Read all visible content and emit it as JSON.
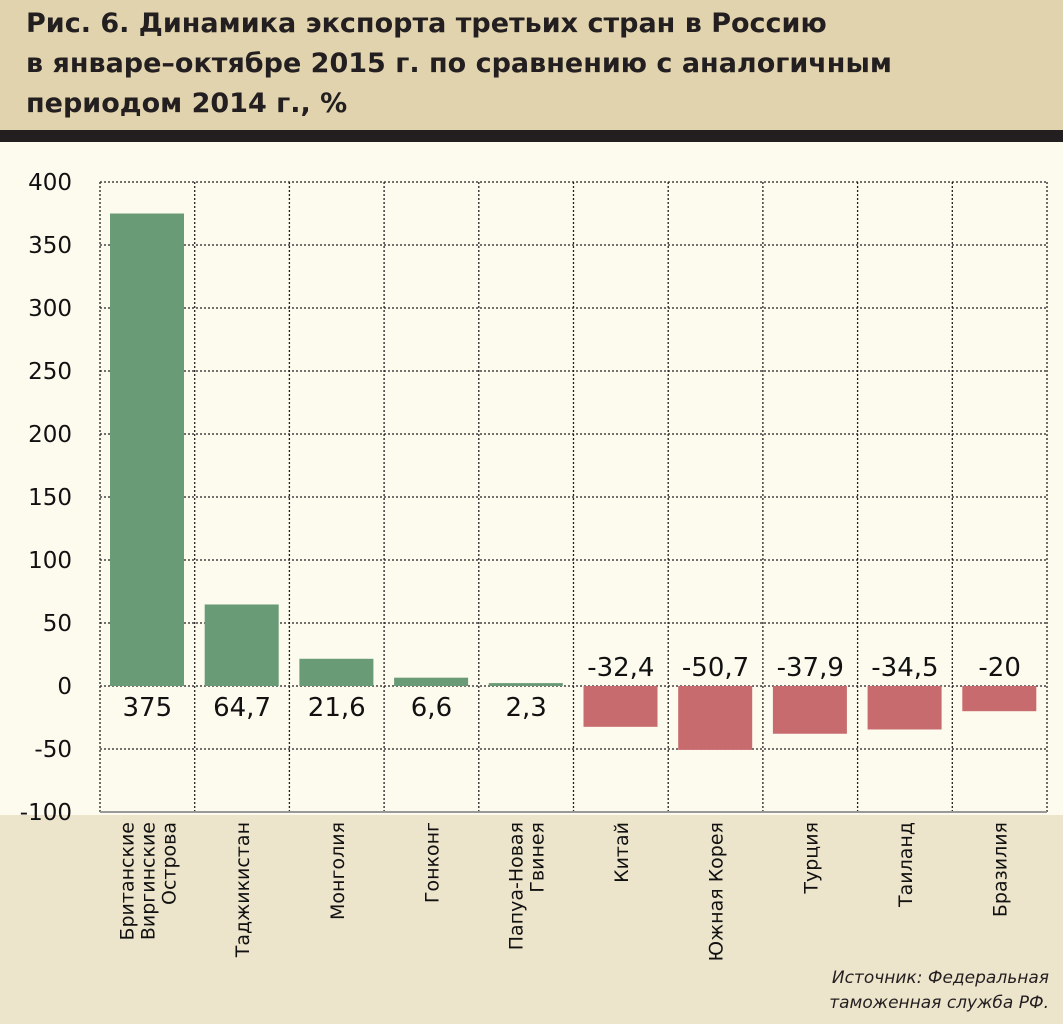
{
  "chart_data": {
    "type": "bar",
    "title": "Рис. 6. Динамика экспорта третьих стран в Россию\nв январе–октябре 2015 г. по сравнению с аналогичным\nпериодом 2014 г., %",
    "categories": [
      [
        "Британские",
        "Виргинские",
        "Острова"
      ],
      [
        "Таджикистан"
      ],
      [
        "Монголия"
      ],
      [
        "Гонконг"
      ],
      [
        "Папуа-Новая",
        "Гвинея"
      ],
      [
        "Китай"
      ],
      [
        "Южная Корея"
      ],
      [
        "Турция"
      ],
      [
        "Таиланд"
      ],
      [
        "Бразилия"
      ]
    ],
    "values": [
      375,
      64.7,
      21.6,
      6.6,
      2.3,
      -32.4,
      -50.7,
      -37.9,
      -34.5,
      -20
    ],
    "data_labels": [
      "375",
      "64,7",
      "21,6",
      "6,6",
      "2,3",
      "-32,4",
      "-50,7",
      "-37,9",
      "-34,5",
      "-20"
    ],
    "yticks": [
      400,
      350,
      300,
      250,
      200,
      150,
      100,
      50,
      0,
      -50,
      -100
    ],
    "ylim": [
      -100,
      400
    ],
    "grid": true,
    "colors": {
      "positive": "#6a9b77",
      "negative": "#c76b6e"
    },
    "source": "Источник: Федеральная\nтаможенная служба РФ."
  }
}
